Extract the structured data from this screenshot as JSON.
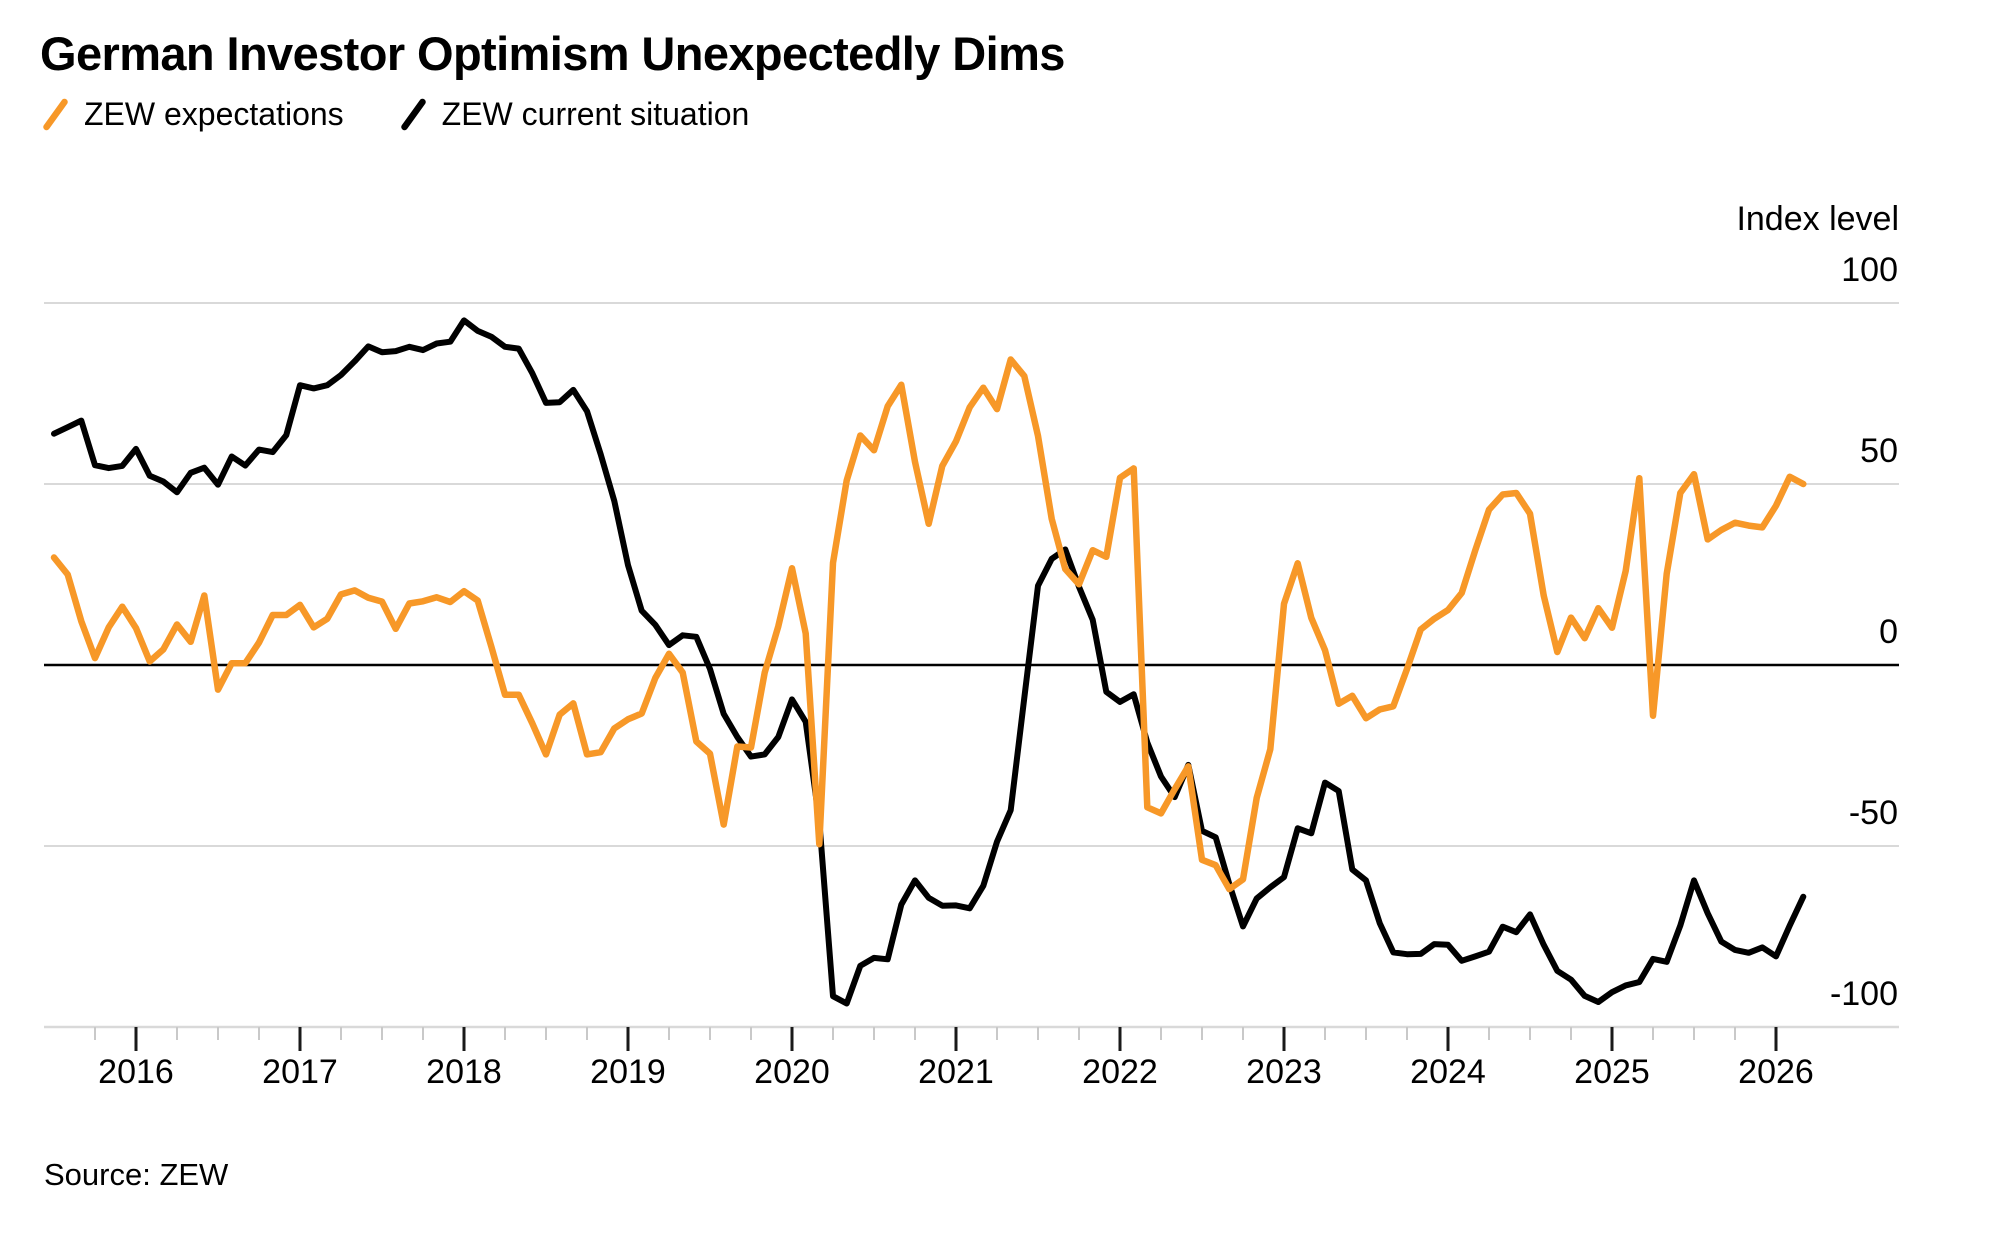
{
  "header": {
    "title": "German Investor Optimism Unexpectedly Dims"
  },
  "legend": {
    "items": [
      {
        "label": "ZEW expectations",
        "color": "#F79828"
      },
      {
        "label": "ZEW current situation",
        "color": "#000000"
      }
    ]
  },
  "axis": {
    "unit_label": "Index level"
  },
  "footer": {
    "source": "Source: ZEW"
  },
  "chart_data": {
    "type": "line",
    "title": "German Investor Optimism Unexpectedly Dims",
    "ylabel": "Index level",
    "ylim": [
      -100,
      100
    ],
    "y_ticks": [
      100,
      50,
      0,
      -50,
      -100
    ],
    "y_tick_labels": [
      "100",
      "50",
      "0",
      "-50",
      "-100"
    ],
    "x_tick_years": [
      2016,
      2017,
      2018,
      2019,
      2020,
      2021,
      2022,
      2023,
      2024,
      2025,
      2026
    ],
    "x_minor_tick_interval_months": 3,
    "start": {
      "year": 2015,
      "month": 7
    },
    "frequency": "monthly",
    "grid": "horizontal",
    "legend_position": "top-left",
    "zero_line": true,
    "series": [
      {
        "name": "ZEW expectations",
        "color": "#F79828",
        "values": [
          29.7,
          25.0,
          12.1,
          1.9,
          10.4,
          16.1,
          10.2,
          1.0,
          4.3,
          11.2,
          6.4,
          19.2,
          -6.8,
          0.5,
          0.5,
          6.2,
          13.8,
          13.8,
          16.6,
          10.4,
          12.8,
          19.5,
          20.6,
          18.6,
          17.5,
          10.0,
          17.0,
          17.6,
          18.7,
          17.4,
          20.4,
          17.8,
          5.1,
          -8.2,
          -8.2,
          -16.1,
          -24.7,
          -13.7,
          -10.6,
          -24.7,
          -24.1,
          -17.5,
          -15.0,
          -13.4,
          -3.6,
          3.1,
          -2.1,
          -21.1,
          -24.5,
          -44.1,
          -22.5,
          -22.8,
          -2.1,
          10.7,
          26.7,
          8.7,
          -49.5,
          28.2,
          51.0,
          63.4,
          59.3,
          71.5,
          77.4,
          56.1,
          39.0,
          55.0,
          61.8,
          71.2,
          76.6,
          70.7,
          84.4,
          79.8,
          63.3,
          40.4,
          26.5,
          22.3,
          31.7,
          29.9,
          51.7,
          54.3,
          -39.3,
          -41.0,
          -34.3,
          -28.0,
          -53.8,
          -55.3,
          -61.9,
          -59.2,
          -36.7,
          -23.3,
          16.9,
          28.1,
          13.0,
          4.1,
          -10.7,
          -8.5,
          -14.7,
          -12.3,
          -11.4,
          -1.1,
          9.8,
          12.8,
          15.2,
          19.9,
          31.7,
          42.9,
          47.1,
          47.5,
          41.8,
          19.2,
          3.6,
          13.1,
          7.4,
          15.7,
          10.3,
          26.0,
          51.6,
          -14.0,
          25.2,
          47.5,
          52.7,
          34.7,
          37.3,
          39.3,
          38.5,
          38.0,
          44.0,
          52.0,
          50.0
        ]
      },
      {
        "name": "ZEW current situation",
        "color": "#000000",
        "values": [
          63.9,
          65.7,
          67.5,
          55.2,
          54.4,
          55.0,
          59.7,
          52.3,
          50.7,
          47.7,
          53.1,
          54.5,
          49.8,
          57.6,
          55.1,
          59.5,
          58.8,
          63.5,
          77.3,
          76.4,
          77.3,
          80.1,
          83.9,
          88.0,
          86.4,
          86.7,
          87.9,
          87.0,
          88.8,
          89.3,
          95.2,
          92.3,
          90.7,
          87.9,
          87.4,
          80.6,
          72.4,
          72.6,
          76.0,
          70.1,
          58.2,
          45.3,
          27.6,
          15.0,
          11.1,
          5.5,
          8.2,
          7.8,
          -1.1,
          -13.5,
          -19.9,
          -25.3,
          -24.7,
          -19.9,
          -9.5,
          -15.7,
          -43.1,
          -91.5,
          -93.5,
          -83.1,
          -80.9,
          -81.3,
          -66.2,
          -59.5,
          -64.3,
          -66.5,
          -66.4,
          -67.2,
          -61.0,
          -48.8,
          -40.1,
          -9.1,
          21.9,
          29.3,
          31.9,
          21.6,
          12.5,
          -7.4,
          -10.2,
          -8.1,
          -21.4,
          -30.8,
          -36.5,
          -27.6,
          -45.8,
          -47.6,
          -60.5,
          -72.2,
          -64.5,
          -61.4,
          -58.6,
          -45.1,
          -46.5,
          -32.5,
          -34.8,
          -56.5,
          -59.5,
          -71.3,
          -79.4,
          -79.9,
          -79.8,
          -77.1,
          -77.3,
          -81.7,
          -80.5,
          -79.2,
          -72.3,
          -73.8,
          -68.9,
          -77.3,
          -84.5,
          -86.9,
          -91.4,
          -93.1,
          -90.4,
          -88.5,
          -87.6,
          -81.2,
          -82.0,
          -72.0,
          -59.5,
          -68.6,
          -76.4,
          -78.7,
          -79.5,
          -78.0,
          -80.5,
          -72.0,
          -64.0
        ]
      }
    ]
  }
}
